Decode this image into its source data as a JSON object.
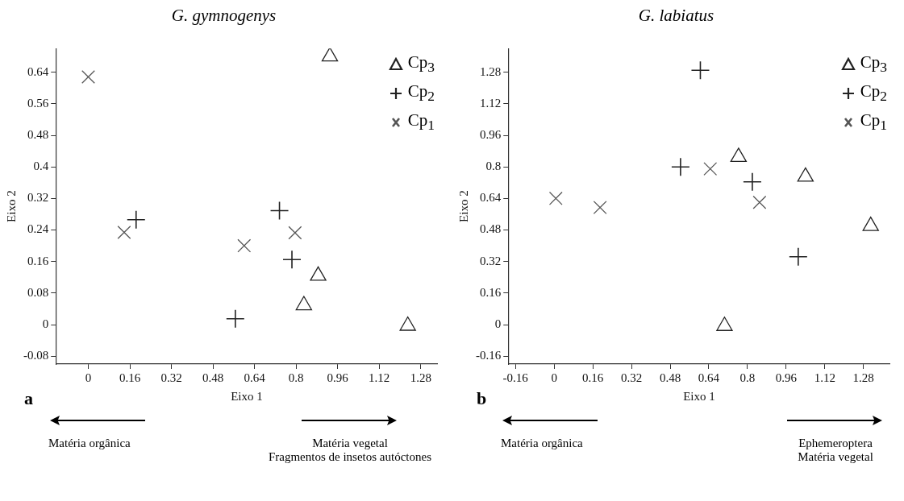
{
  "chart_data": [
    {
      "type": "scatter",
      "title": "G. gymnogenys",
      "xlabel": "Eixo 1",
      "ylabel": "Eixo 2",
      "xlim": [
        -0.125,
        1.345
      ],
      "ylim": [
        -0.1,
        0.7
      ],
      "xticks": [
        0,
        0.16,
        0.32,
        0.48,
        0.64,
        0.8,
        0.96,
        1.12,
        1.28
      ],
      "yticks": [
        -0.08,
        0,
        0.08,
        0.16,
        0.24,
        0.32,
        0.4,
        0.48,
        0.56,
        0.64
      ],
      "grid": false,
      "legend": "top right",
      "series": [
        {
          "name": "Cp$_{3}$",
          "color": "#222222",
          "marker": "triangle",
          "x": [
            0.93,
            0.885,
            0.83,
            1.23
          ],
          "values": [
            0.68,
            0.124,
            0.049,
            -0.003
          ]
        },
        {
          "name": "Cp$_{2}$",
          "color": "#222222",
          "marker": "cross",
          "x": [
            0.184,
            0.736,
            0.784,
            0.566
          ],
          "values": [
            0.266,
            0.289,
            0.165,
            0.015
          ]
        },
        {
          "name": "Cp$_{1}$",
          "color": "#555555",
          "marker": "x",
          "x": [
            0,
            0.138,
            0.6,
            0.796
          ],
          "values": [
            0.628,
            0.234,
            0.2,
            0.233
          ]
        }
      ],
      "annotations": [
        "a",
        "Matéria orgânica",
        "Matéria vegetal",
        "Fragmentos de insetos autóctones"
      ]
    },
    {
      "type": "scatter",
      "title": "G. labiatus",
      "xlabel": "Eixo 1",
      "ylabel": "Eixo 2",
      "xlim": [
        -0.19,
        1.39
      ],
      "ylim": [
        -0.2,
        1.4
      ],
      "xticks": [
        -0.16,
        0,
        0.16,
        0.32,
        0.48,
        0.64,
        0.8,
        0.96,
        1.12,
        1.28
      ],
      "yticks": [
        -0.16,
        0,
        0.16,
        0.32,
        0.48,
        0.64,
        0.8,
        0.96,
        1.12,
        1.28
      ],
      "grid": false,
      "legend": "top right",
      "series": [
        {
          "name": "Cp$_{3}$",
          "color": "#222222",
          "marker": "triangle",
          "x": [
            0.763,
            1.04,
            1.31,
            0.705
          ],
          "values": [
            0.85,
            0.75,
            0.5,
            -0.007
          ]
        },
        {
          "name": "Cp$_{2}$",
          "color": "#222222",
          "marker": "cross",
          "x": [
            0.605,
            0.523,
            0.82,
            1.01
          ],
          "values": [
            1.29,
            0.8,
            0.724,
            0.344
          ]
        },
        {
          "name": "Cp$_{1}$",
          "color": "#555555",
          "marker": "x",
          "x": [
            0.007,
            0.19,
            0.646,
            0.85
          ],
          "values": [
            0.64,
            0.594,
            0.79,
            0.62
          ]
        }
      ],
      "annotations": [
        "b",
        "Matéria orgânica",
        "Ephemeroptera",
        "Matéria vegetal"
      ]
    }
  ]
}
